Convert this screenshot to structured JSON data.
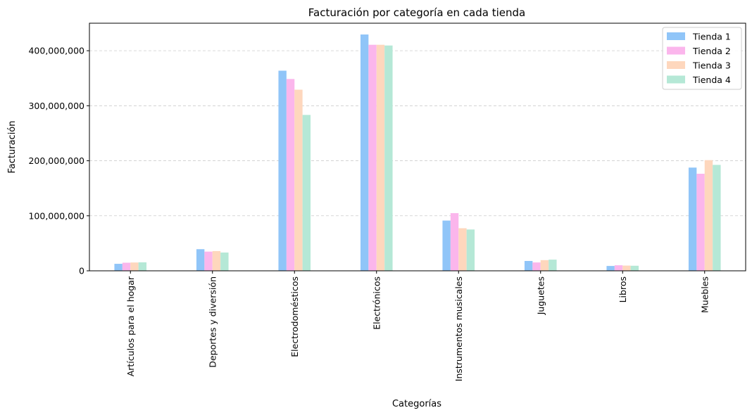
{
  "chart_data": {
    "type": "bar",
    "title": "Facturación por categoría en cada tienda",
    "xlabel": "Categorías",
    "ylabel": "Facturación",
    "ylim": [
      0,
      450000000
    ],
    "yticks": [
      0,
      100000000,
      200000000,
      300000000,
      400000000
    ],
    "ytick_labels": [
      "0",
      "100,000,000",
      "200,000,000",
      "300,000,000",
      "400,000,000"
    ],
    "grid": "y-dashed",
    "legend_position": "top-right",
    "categories": [
      "Artículos para el hogar",
      "Deportes y diversión",
      "Electrodomésticos",
      "Electrónicos",
      "Instrumentos musicales",
      "Juguetes",
      "Libros",
      "Muebles"
    ],
    "series": [
      {
        "name": "Tienda 1",
        "color": "#90c5f8",
        "values": [
          12700000,
          39300000,
          363700000,
          429500000,
          91300000,
          17900000,
          8800000,
          187600000
        ]
      },
      {
        "name": "Tienda 2",
        "color": "#fbb6ec",
        "values": [
          14700000,
          34900000,
          348600000,
          410800000,
          104800000,
          15200000,
          10100000,
          176400000
        ]
      },
      {
        "name": "Tienda 3",
        "color": "#fed7bd",
        "values": [
          15100000,
          35900000,
          329200000,
          410800000,
          77400000,
          19400000,
          9500000,
          201100000
        ]
      },
      {
        "name": "Tienda 4",
        "color": "#b5e8d6",
        "values": [
          15400000,
          33200000,
          283300000,
          409500000,
          75100000,
          20300000,
          9200000,
          192500000
        ]
      }
    ]
  }
}
